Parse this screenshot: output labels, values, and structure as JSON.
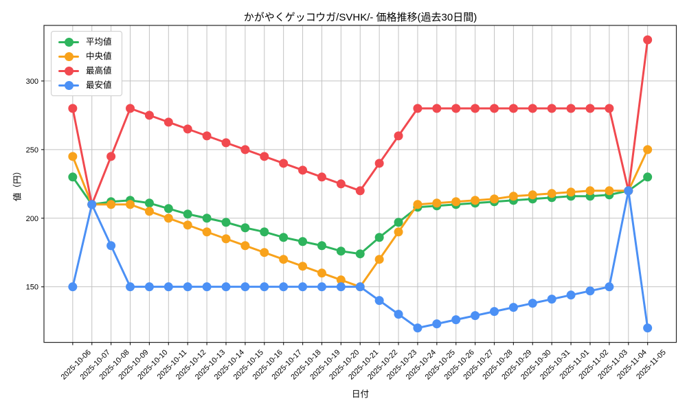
{
  "chart_data": {
    "type": "line",
    "title": "かがやくゲッコウガ/SVHK/- 価格推移(過去30日間)",
    "xlabel": "日付",
    "ylabel": "値（円）",
    "grid": true,
    "legend_position": "upper-left",
    "ylim": [
      109.5,
      340.5
    ],
    "yticks": [
      150,
      200,
      250,
      300
    ],
    "x_labels": [
      "2025-10-06",
      "2025-10-07",
      "2025-10-08",
      "2025-10-09",
      "2025-10-10",
      "2025-10-11",
      "2025-10-12",
      "2025-10-13",
      "2025-10-14",
      "2025-10-15",
      "2025-10-16",
      "2025-10-17",
      "2025-10-18",
      "2025-10-19",
      "2025-10-20",
      "2025-10-21",
      "2025-10-22",
      "2025-10-23",
      "2025-10-24",
      "2025-10-25",
      "2025-10-26",
      "2025-10-27",
      "2025-10-28",
      "2025-10-29",
      "2025-10-30",
      "2025-10-31",
      "2025-11-01",
      "2025-11-02",
      "2025-11-03",
      "2025-11-04",
      "2025-11-05"
    ],
    "series": [
      {
        "name": "平均値",
        "key": "average",
        "color": "#2eb45d",
        "values": [
          230,
          210,
          212,
          213,
          211,
          207,
          203,
          200,
          197,
          193,
          190,
          186,
          183,
          180,
          176,
          174,
          186,
          197,
          208,
          209,
          210,
          211,
          212,
          213,
          214,
          215,
          216,
          216,
          217,
          220,
          230
        ]
      },
      {
        "name": "中央値",
        "key": "median",
        "color": "#f8a21b",
        "values": [
          245,
          210,
          210,
          210,
          205,
          200,
          195,
          190,
          185,
          180,
          175,
          170,
          165,
          160,
          155,
          150,
          170,
          190,
          210,
          211,
          212,
          213,
          214,
          216,
          217,
          218,
          219,
          220,
          220,
          220,
          250
        ]
      },
      {
        "name": "最高値",
        "key": "max",
        "color": "#f1494f",
        "values": [
          280,
          210,
          245,
          280,
          275,
          270,
          265,
          260,
          255,
          250,
          245,
          240,
          235,
          230,
          225,
          220,
          240,
          260,
          280,
          280,
          280,
          280,
          280,
          280,
          280,
          280,
          280,
          280,
          280,
          220,
          330
        ]
      },
      {
        "name": "最安値",
        "key": "min",
        "color": "#4b90f5",
        "values": [
          150,
          210,
          180,
          150,
          150,
          150,
          150,
          150,
          150,
          150,
          150,
          150,
          150,
          150,
          150,
          150,
          140,
          130,
          120,
          123,
          126,
          129,
          132,
          135,
          138,
          141,
          144,
          147,
          150,
          220,
          120
        ]
      }
    ]
  },
  "colors": {
    "background": "#ffffff",
    "grid": "#c2c2c2",
    "axis": "#262626",
    "text": "#000000",
    "legend_border": "#cccccc"
  }
}
